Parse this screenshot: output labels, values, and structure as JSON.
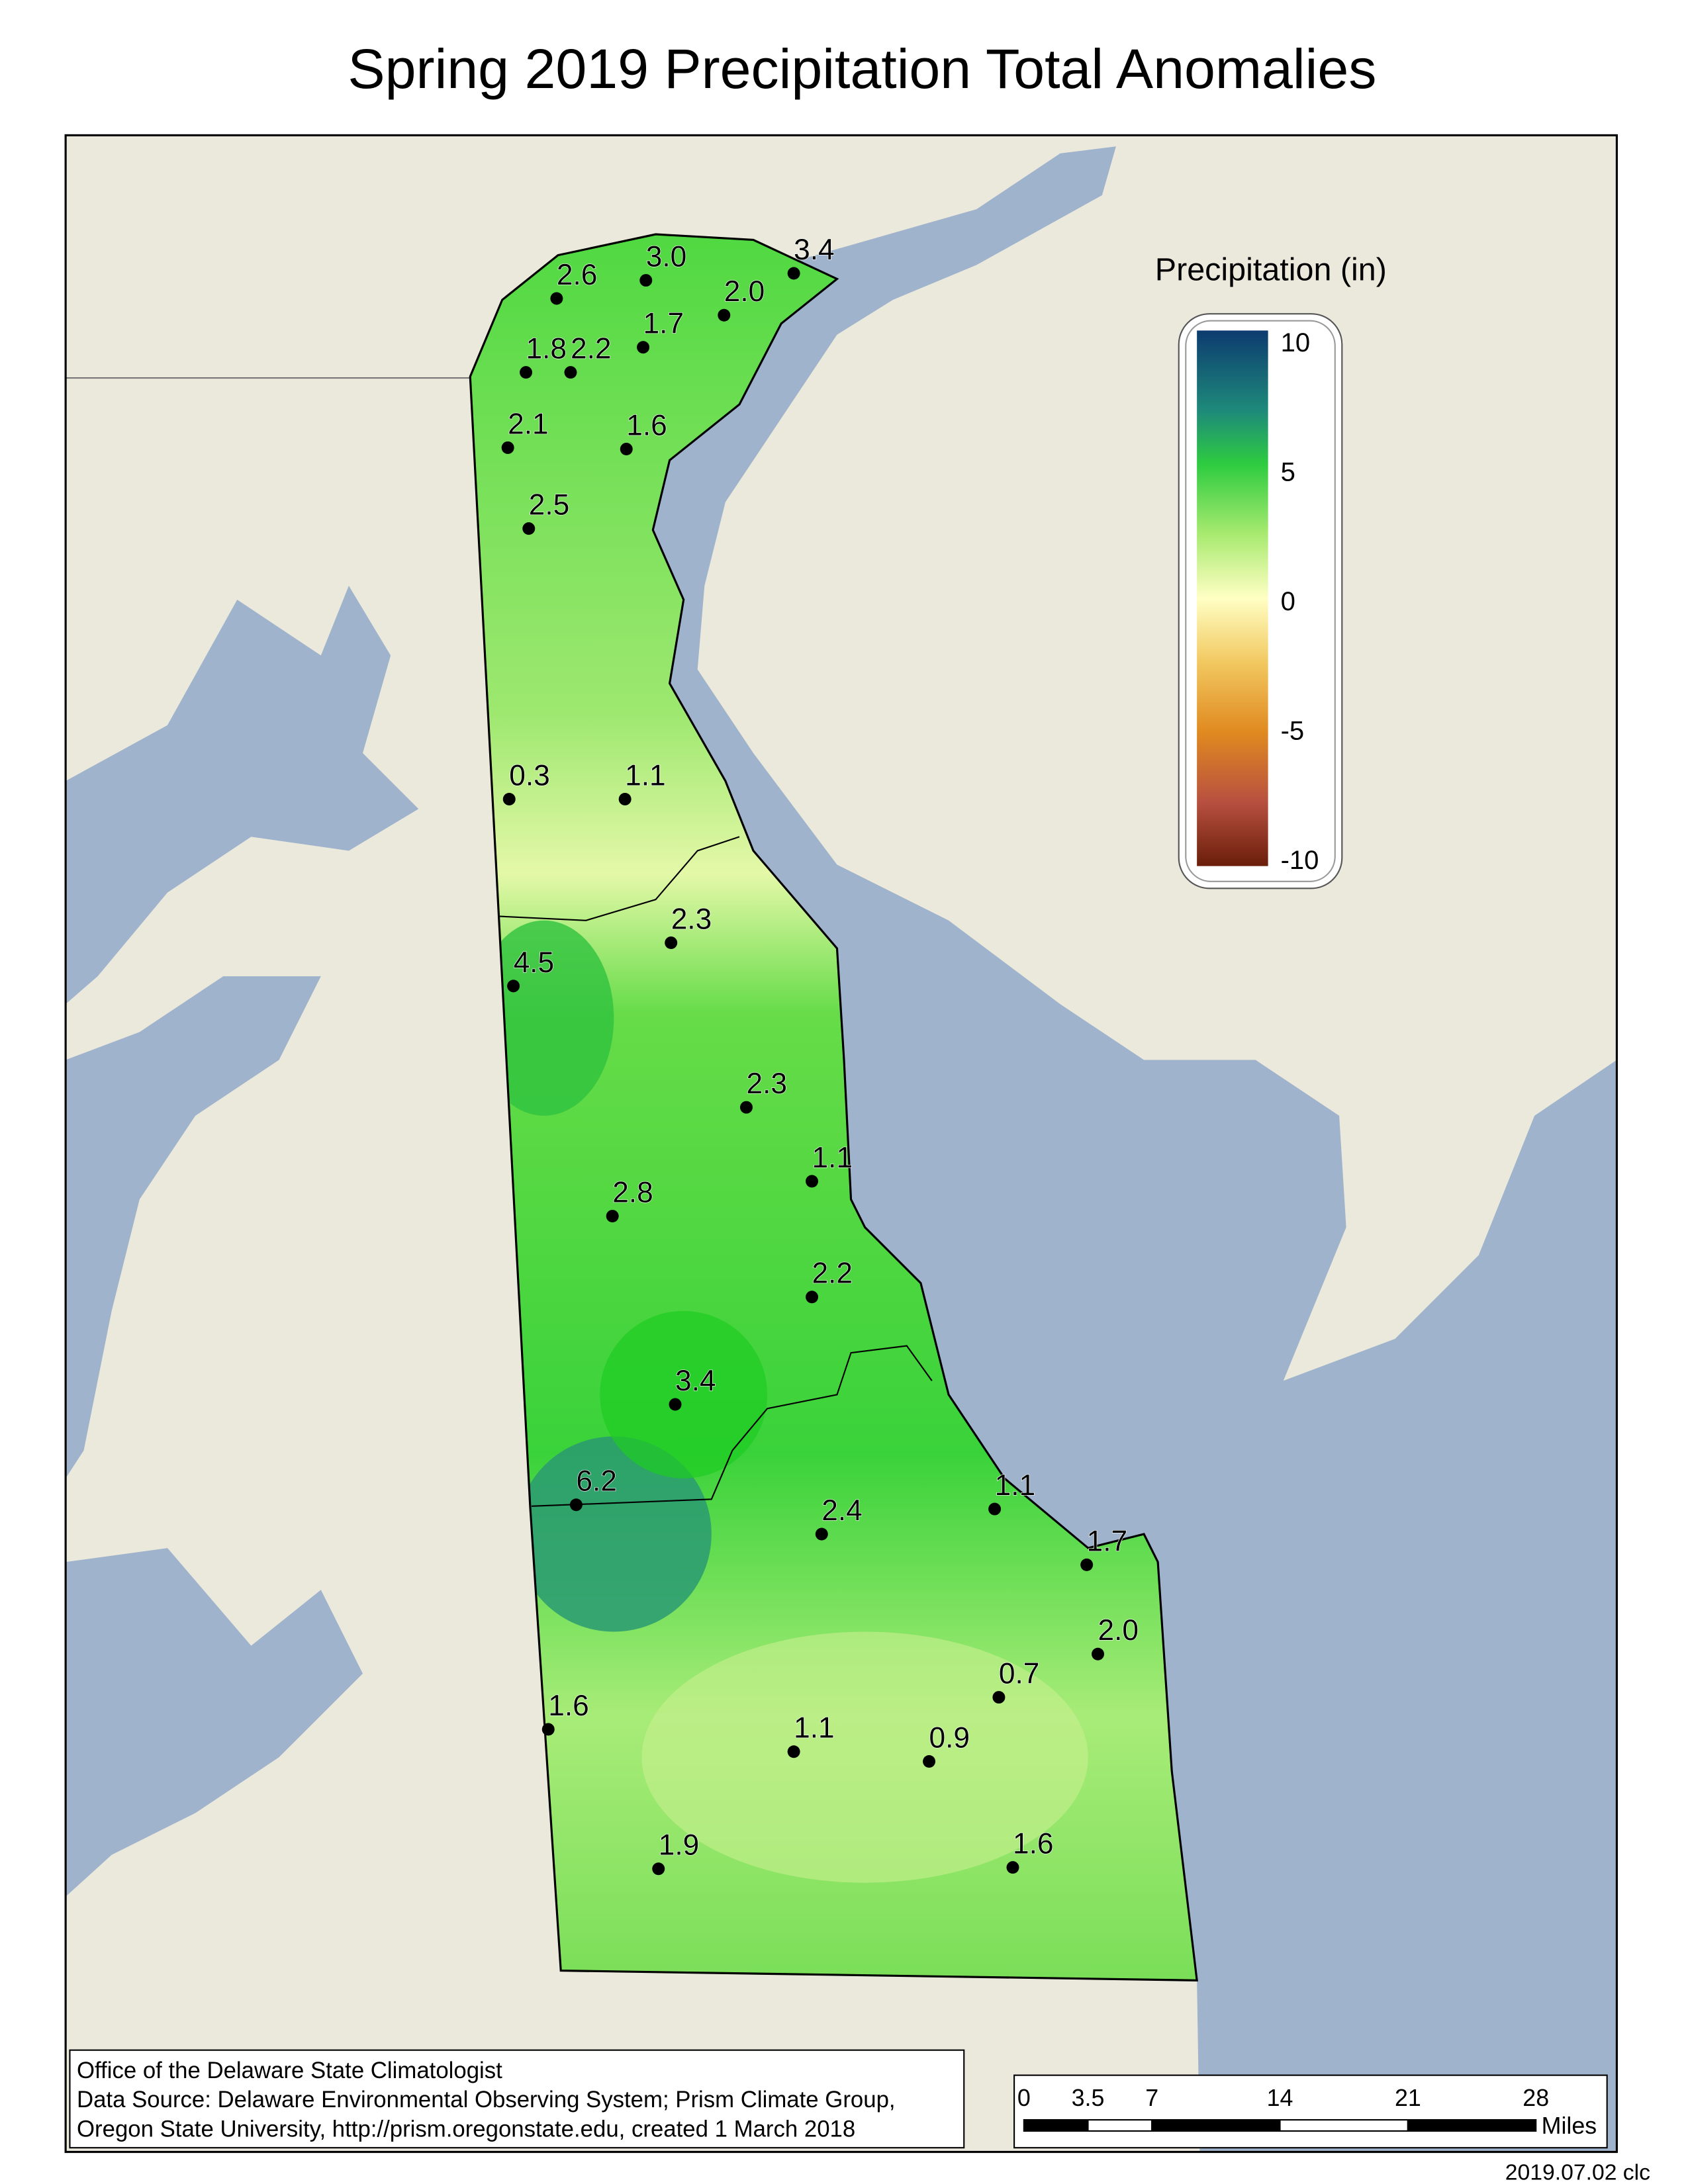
{
  "title": "Spring 2019 Precipitation Total Anomalies",
  "legend": {
    "title": "Precipitation (in)",
    "range": [
      -10,
      10
    ],
    "ticks": [
      10,
      5,
      0,
      -5,
      -10
    ]
  },
  "stations": [
    "2.6",
    "3.0",
    "3.4",
    "2.0",
    "1.8",
    "2.2",
    "1.7",
    "2.1",
    "1.6",
    "2.5",
    "0.3",
    "1.1",
    "2.3",
    "4.5",
    "2.3",
    "1.1",
    "2.8",
    "2.2",
    "3.4",
    "6.2",
    "2.4",
    "1.1",
    "1.7",
    "2.0",
    "0.7",
    "1.6",
    "1.1",
    "0.9",
    "1.9",
    "1.6"
  ],
  "credits": [
    "Office of the Delaware State Climatologist",
    "Data Source: Delaware Environmental Observing System; Prism Climate Group,",
    "Oregon State University, http://prism.oregonstate.edu, created 1 March 2018"
  ],
  "scale_bar": {
    "ticks": [
      0,
      3.5,
      7,
      14,
      21,
      28
    ],
    "unit": "Miles"
  },
  "stamp": "2019.07.02 clc"
}
